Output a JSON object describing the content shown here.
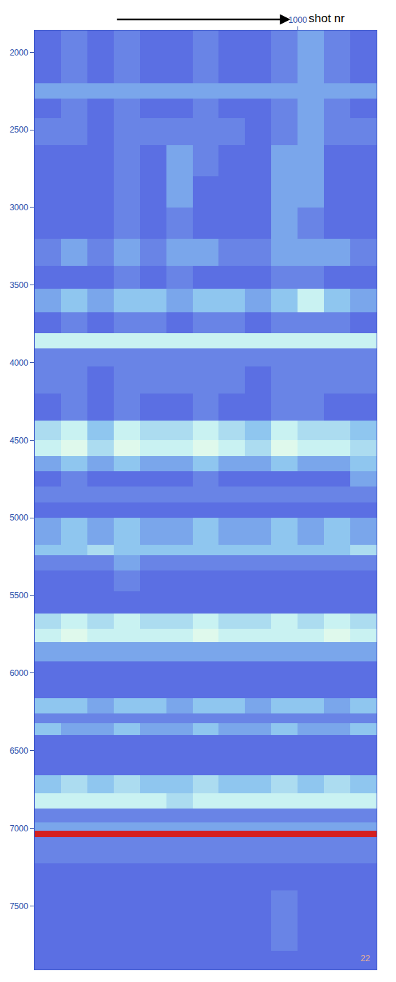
{
  "chart_data": {
    "type": "heatmap",
    "x_label": "shot nr",
    "page_number": "22",
    "grid": false,
    "xlim": [
      0,
      1300
    ],
    "xticks": [
      1000
    ],
    "ylim": [
      7910,
      1860
    ],
    "yticks": [
      2000,
      2500,
      3000,
      3500,
      4000,
      4500,
      5000,
      5500,
      6000,
      6500,
      7000,
      7500
    ],
    "x": [
      50,
      150,
      250,
      350,
      450,
      550,
      650,
      750,
      850,
      950,
      1050,
      1150,
      1250
    ],
    "y": [
      1880,
      2000,
      2150,
      2250,
      2350,
      2500,
      2700,
      2900,
      3100,
      3300,
      3450,
      3600,
      3750,
      3870,
      3950,
      4100,
      4300,
      4450,
      4550,
      4650,
      4750,
      4850,
      4950,
      5050,
      5150,
      5200,
      5280,
      5400,
      5550,
      5680,
      5750,
      5850,
      6000,
      6100,
      6220,
      6300,
      6350,
      6450,
      6600,
      6720,
      6830,
      6920,
      7000,
      7030,
      7080,
      7150,
      7300,
      7500,
      7700,
      7880
    ],
    "z": [
      [
        1,
        2,
        1,
        2,
        1,
        1,
        2,
        1,
        1,
        2,
        3,
        2,
        1
      ],
      [
        1,
        2,
        1,
        2,
        1,
        1,
        2,
        1,
        1,
        2,
        3,
        2,
        1
      ],
      [
        1,
        2,
        1,
        2,
        1,
        1,
        2,
        1,
        1,
        2,
        3,
        2,
        1
      ],
      [
        3,
        3,
        3,
        3,
        3,
        3,
        3,
        3,
        3,
        3,
        3,
        3,
        3
      ],
      [
        1,
        2,
        1,
        2,
        1,
        1,
        2,
        1,
        1,
        2,
        3,
        2,
        1
      ],
      [
        2,
        2,
        1,
        2,
        2,
        2,
        2,
        2,
        1,
        2,
        3,
        2,
        2
      ],
      [
        1,
        1,
        1,
        2,
        1,
        3,
        2,
        1,
        1,
        3,
        3,
        1,
        1
      ],
      [
        1,
        1,
        1,
        2,
        1,
        3,
        1,
        1,
        1,
        3,
        3,
        1,
        1
      ],
      [
        1,
        1,
        1,
        2,
        1,
        2,
        1,
        1,
        1,
        3,
        2,
        1,
        1
      ],
      [
        2,
        3,
        2,
        3,
        2,
        3,
        3,
        2,
        2,
        3,
        3,
        3,
        2
      ],
      [
        1,
        1,
        1,
        2,
        1,
        2,
        1,
        1,
        1,
        2,
        2,
        1,
        1
      ],
      [
        3,
        4,
        3,
        4,
        4,
        3,
        4,
        4,
        3,
        4,
        6,
        4,
        3
      ],
      [
        1,
        2,
        1,
        2,
        2,
        1,
        2,
        2,
        1,
        2,
        2,
        2,
        1
      ],
      [
        6,
        6,
        6,
        6,
        6,
        6,
        6,
        6,
        6,
        6,
        6,
        6,
        6
      ],
      [
        2,
        2,
        2,
        2,
        2,
        2,
        2,
        2,
        2,
        2,
        2,
        2,
        2
      ],
      [
        2,
        2,
        1,
        2,
        2,
        2,
        2,
        2,
        1,
        2,
        2,
        2,
        2
      ],
      [
        1,
        2,
        1,
        2,
        1,
        1,
        2,
        1,
        1,
        2,
        2,
        1,
        1
      ],
      [
        5,
        6,
        4,
        6,
        5,
        5,
        6,
        5,
        4,
        6,
        5,
        5,
        4
      ],
      [
        6,
        7,
        5,
        7,
        6,
        6,
        7,
        6,
        5,
        7,
        6,
        6,
        5
      ],
      [
        3,
        4,
        3,
        4,
        3,
        3,
        4,
        3,
        3,
        4,
        3,
        3,
        4
      ],
      [
        1,
        2,
        1,
        1,
        1,
        1,
        2,
        1,
        1,
        1,
        1,
        1,
        3
      ],
      [
        2,
        2,
        2,
        2,
        2,
        2,
        2,
        2,
        2,
        2,
        2,
        2,
        2
      ],
      [
        1,
        1,
        1,
        1,
        1,
        1,
        1,
        1,
        1,
        1,
        1,
        1,
        1
      ],
      [
        3,
        4,
        3,
        4,
        3,
        3,
        4,
        3,
        3,
        4,
        3,
        4,
        3
      ],
      [
        3,
        4,
        3,
        4,
        3,
        3,
        4,
        3,
        3,
        4,
        3,
        4,
        3
      ],
      [
        4,
        4,
        5,
        4,
        4,
        4,
        4,
        4,
        4,
        4,
        4,
        4,
        5
      ],
      [
        2,
        2,
        2,
        3,
        2,
        2,
        2,
        2,
        2,
        2,
        2,
        2,
        2
      ],
      [
        1,
        1,
        1,
        2,
        1,
        1,
        1,
        1,
        1,
        1,
        1,
        1,
        1
      ],
      [
        1,
        1,
        1,
        1,
        1,
        1,
        1,
        1,
        1,
        1,
        1,
        1,
        1
      ],
      [
        5,
        6,
        5,
        6,
        5,
        5,
        6,
        5,
        5,
        6,
        5,
        6,
        5
      ],
      [
        6,
        7,
        6,
        6,
        6,
        6,
        7,
        6,
        6,
        6,
        6,
        7,
        6
      ],
      [
        3,
        3,
        3,
        3,
        3,
        3,
        3,
        3,
        3,
        3,
        3,
        3,
        3
      ],
      [
        1,
        1,
        1,
        1,
        1,
        1,
        1,
        1,
        1,
        1,
        1,
        1,
        1
      ],
      [
        1,
        1,
        1,
        1,
        1,
        1,
        1,
        1,
        1,
        1,
        1,
        1,
        1
      ],
      [
        4,
        4,
        3,
        4,
        4,
        3,
        4,
        4,
        3,
        4,
        4,
        3,
        4
      ],
      [
        2,
        2,
        2,
        2,
        2,
        2,
        2,
        2,
        2,
        2,
        2,
        2,
        2
      ],
      [
        4,
        3,
        3,
        4,
        3,
        3,
        4,
        3,
        3,
        4,
        3,
        3,
        4
      ],
      [
        1,
        1,
        1,
        1,
        1,
        1,
        1,
        1,
        1,
        1,
        1,
        1,
        1
      ],
      [
        1,
        1,
        1,
        1,
        1,
        1,
        1,
        1,
        1,
        1,
        1,
        1,
        1
      ],
      [
        4,
        5,
        4,
        5,
        4,
        4,
        5,
        4,
        4,
        5,
        4,
        5,
        4
      ],
      [
        6,
        6,
        6,
        6,
        6,
        5,
        6,
        6,
        6,
        6,
        6,
        6,
        6
      ],
      [
        2,
        2,
        2,
        2,
        2,
        2,
        2,
        2,
        2,
        2,
        2,
        2,
        2
      ],
      [
        3,
        3,
        3,
        3,
        3,
        3,
        3,
        3,
        3,
        3,
        3,
        3,
        3
      ],
      [
        10,
        10,
        10,
        10,
        10,
        10,
        10,
        10,
        10,
        10,
        10,
        10,
        10
      ],
      [
        2,
        2,
        2,
        2,
        2,
        2,
        2,
        2,
        2,
        2,
        2,
        2,
        2
      ],
      [
        2,
        2,
        2,
        2,
        2,
        2,
        2,
        2,
        2,
        2,
        2,
        2,
        2
      ],
      [
        1,
        1,
        1,
        1,
        1,
        1,
        1,
        1,
        1,
        1,
        1,
        1,
        1
      ],
      [
        1,
        1,
        1,
        1,
        1,
        1,
        1,
        1,
        1,
        2,
        1,
        1,
        1
      ],
      [
        1,
        1,
        1,
        1,
        1,
        1,
        1,
        1,
        1,
        2,
        1,
        1,
        1
      ],
      [
        1,
        1,
        1,
        1,
        1,
        1,
        1,
        1,
        1,
        1,
        1,
        1,
        1
      ]
    ]
  }
}
